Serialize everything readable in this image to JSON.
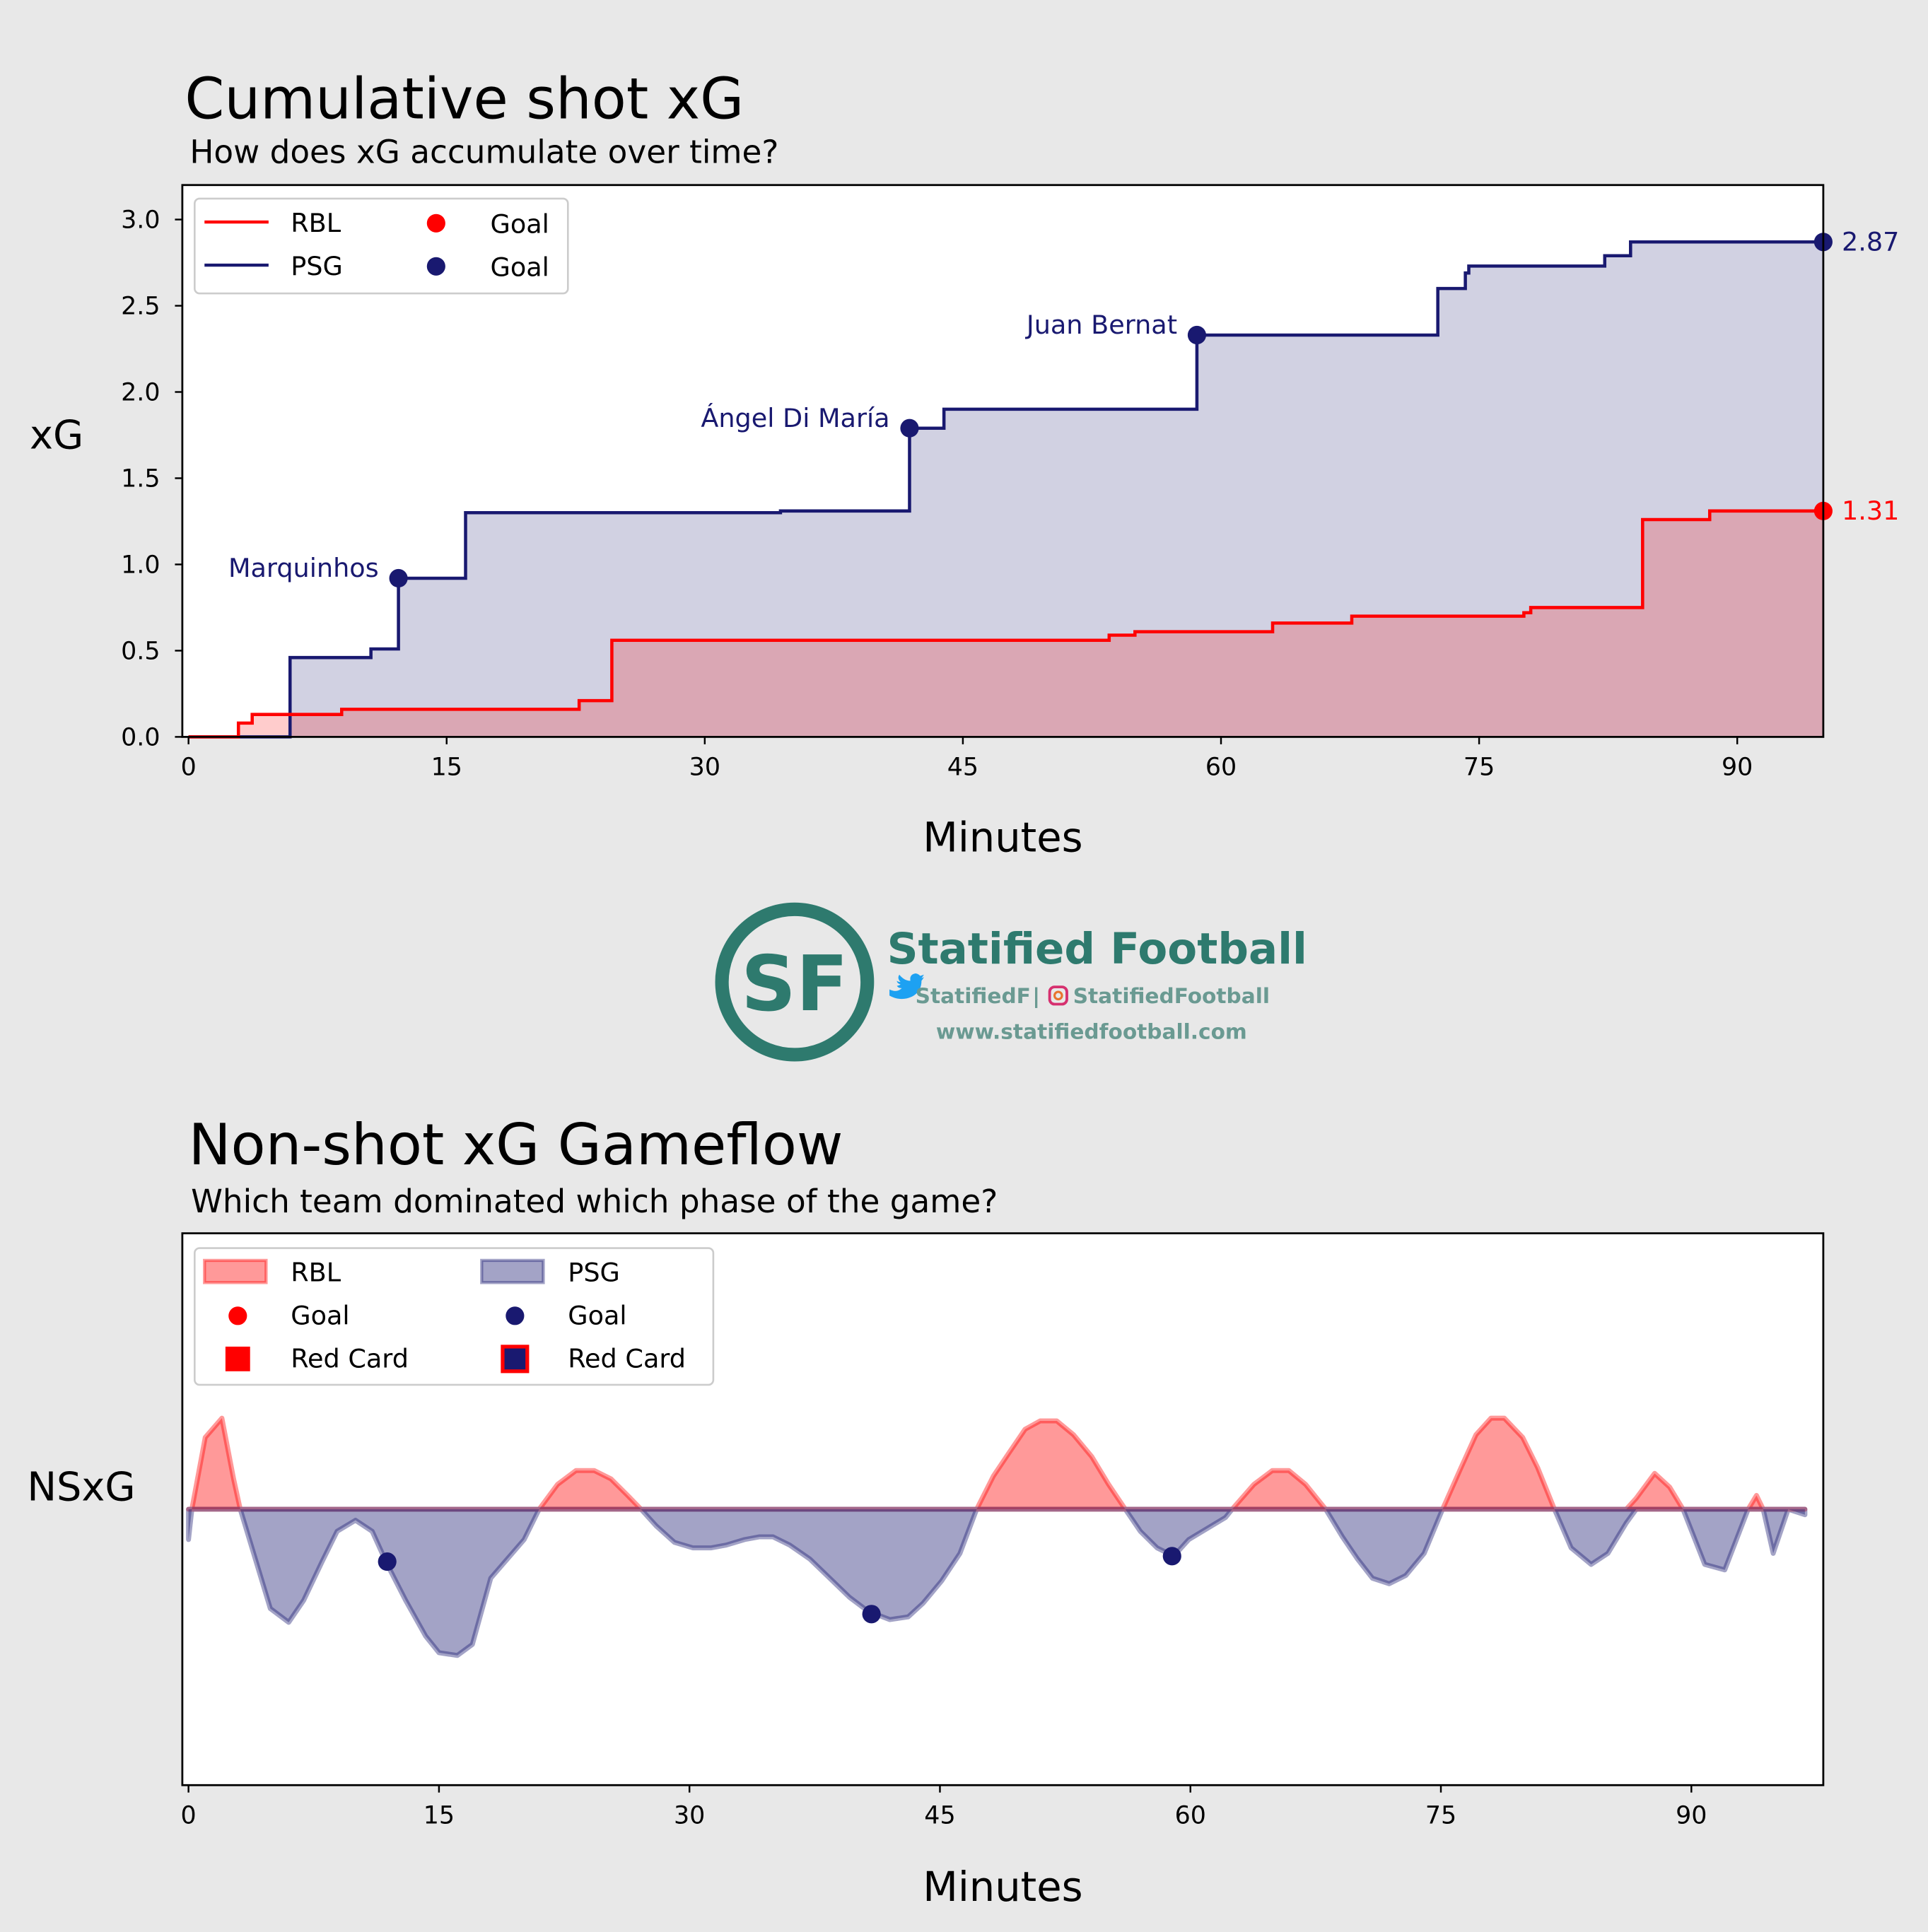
{
  "colors": {
    "rbl": "#ff0000",
    "psg": "#191970",
    "brand": "#2e7a6e",
    "background": "#e8e8e8"
  },
  "chart_data": [
    {
      "type": "line",
      "title": "Cumulative shot xG",
      "subtitle": "How does xG accumulate over time?",
      "xlabel": "Minutes",
      "ylabel": "xG",
      "xlim": [
        -0.36,
        95
      ],
      "ylim": [
        0,
        3.2
      ],
      "xticks": [
        0,
        15,
        30,
        45,
        60,
        75,
        90
      ],
      "yticks": [
        "0.0",
        "0.5",
        "1.0",
        "1.5",
        "2.0",
        "2.5",
        "3.0"
      ],
      "grid": false,
      "legend": {
        "placement": "top-left",
        "entries": [
          "RBL",
          "PSG",
          "Goal",
          "Goal"
        ]
      },
      "series": [
        {
          "name": "RBL",
          "style": "step",
          "final_label": "1.31",
          "points": [
            [
              0,
              0
            ],
            [
              2.9,
              0.08
            ],
            [
              3.7,
              0.13
            ],
            [
              8.9,
              0.16
            ],
            [
              22.7,
              0.21
            ],
            [
              24.6,
              0.56
            ],
            [
              53.5,
              0.59
            ],
            [
              55,
              0.61
            ],
            [
              63,
              0.66
            ],
            [
              67.6,
              0.7
            ],
            [
              77.6,
              0.72
            ],
            [
              78,
              0.75
            ],
            [
              84.5,
              1.26
            ],
            [
              88.4,
              1.31
            ],
            [
              95,
              1.31
            ]
          ],
          "goals": []
        },
        {
          "name": "PSG",
          "style": "step",
          "final_label": "2.87",
          "points": [
            [
              0,
              0
            ],
            [
              5.9,
              0.46
            ],
            [
              10.6,
              0.51
            ],
            [
              12.2,
              0.92
            ],
            [
              16.1,
              1.3
            ],
            [
              34.4,
              1.31
            ],
            [
              41.9,
              1.79
            ],
            [
              43.9,
              1.9
            ],
            [
              58.6,
              2.33
            ],
            [
              72.6,
              2.6
            ],
            [
              74.2,
              2.69
            ],
            [
              74.4,
              2.73
            ],
            [
              82.3,
              2.79
            ],
            [
              83.8,
              2.87
            ],
            [
              95,
              2.87
            ]
          ],
          "goals": [
            {
              "minute": 12.2,
              "xg": 0.92,
              "scorer": "Marquinhos"
            },
            {
              "minute": 41.9,
              "xg": 1.79,
              "scorer": "Ángel Di María"
            },
            {
              "minute": 58.6,
              "xg": 2.33,
              "scorer": "Juan Bernat"
            }
          ]
        }
      ]
    },
    {
      "type": "area",
      "title": "Non-shot xG Gameflow",
      "subtitle": "Which team dominated which phase of the game?",
      "xlabel": "Minutes",
      "ylabel": "NSxG",
      "xlim": [
        -0.37,
        97.9
      ],
      "ylim": [
        -1,
        1
      ],
      "xticks": [
        0,
        15,
        30,
        45,
        60,
        75,
        90
      ],
      "grid": false,
      "legend": {
        "placement": "top-left",
        "entries": [
          "RBL",
          "PSG",
          "Goal",
          "Goal",
          "Red Card",
          "Red Card"
        ]
      },
      "x": [
        0,
        0.2,
        1.0,
        2.0,
        2.7,
        3.1,
        4.0,
        4.9,
        6.0,
        6.9,
        8.0,
        8.9,
        10.0,
        11.0,
        11.9,
        13.0,
        14.2,
        15.0,
        16.1,
        17.0,
        18.1,
        19.1,
        20.1,
        21.0,
        22.1,
        23.2,
        24.3,
        25.3,
        26.3,
        27.1,
        28.0,
        29.1,
        30.2,
        31.3,
        32.2,
        33.3,
        34.2,
        35.0,
        36.0,
        37.2,
        38.4,
        39.6,
        40.7,
        42.0,
        43.1,
        44.0,
        45.1,
        46.2,
        47.2,
        48.2,
        49.2,
        50.1,
        51.0,
        52.0,
        53.0,
        54.1,
        55.1,
        56.1,
        57.0,
        58.0,
        59.0,
        59.9,
        61.0,
        62.1,
        62.5,
        63.8,
        64.9,
        65.9,
        66.9,
        68.1,
        69.1,
        70.0,
        70.9,
        71.9,
        72.9,
        74.0,
        75.1,
        76.2,
        77.1,
        78.0,
        78.8,
        79.9,
        80.8,
        81.8,
        82.8,
        84.0,
        85.0,
        86.1,
        86.7,
        87.8,
        88.7,
        89.5,
        90.8,
        92.0,
        93.4,
        93.9,
        94.3,
        94.9,
        95.8,
        96.8
      ],
      "nsxg": [
        -0.11,
        0,
        0.26,
        0.33,
        0.11,
        0,
        -0.18,
        -0.36,
        -0.41,
        -0.33,
        -0.19,
        -0.08,
        -0.04,
        -0.08,
        -0.2,
        -0.33,
        -0.46,
        -0.52,
        -0.53,
        -0.49,
        -0.25,
        -0.18,
        -0.11,
        0,
        0.09,
        0.14,
        0.14,
        0.11,
        0.05,
        0,
        -0.06,
        -0.12,
        -0.14,
        -0.14,
        -0.13,
        -0.11,
        -0.1,
        -0.1,
        -0.13,
        -0.18,
        -0.25,
        -0.32,
        -0.37,
        -0.4,
        -0.39,
        -0.34,
        -0.26,
        -0.16,
        0,
        0.12,
        0.21,
        0.29,
        0.32,
        0.32,
        0.27,
        0.19,
        0.09,
        0,
        -0.08,
        -0.14,
        -0.17,
        -0.11,
        -0.07,
        -0.03,
        0,
        0.09,
        0.14,
        0.14,
        0.09,
        0,
        -0.1,
        -0.18,
        -0.25,
        -0.27,
        -0.24,
        -0.16,
        0,
        0.15,
        0.27,
        0.33,
        0.33,
        0.26,
        0.15,
        0,
        -0.14,
        -0.2,
        -0.16,
        -0.05,
        0.04,
        0.13,
        0.08,
        0,
        -0.2,
        -0.22,
        0,
        0.05,
        0,
        -0.16,
        0,
        -0.02
      ],
      "goals": [
        {
          "team": "PSG",
          "minute": 11.9,
          "value": -0.19
        },
        {
          "team": "PSG",
          "minute": 40.9,
          "value": -0.38
        },
        {
          "team": "PSG",
          "minute": 58.9,
          "value": -0.17
        }
      ],
      "red_cards": []
    }
  ],
  "logo": {
    "monogram": "SF",
    "name": "Statified Football",
    "twitter": "StatifiedF",
    "separator": "|",
    "instagram": "StatifiedFootball",
    "url": "www.statifiedfootball.com",
    "icons": [
      "twitter-bird-icon",
      "instagram-icon"
    ]
  }
}
